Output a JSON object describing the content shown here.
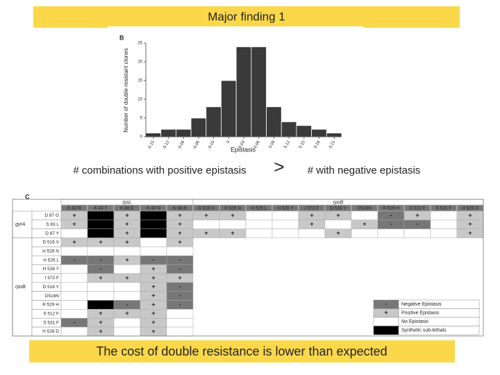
{
  "header": {
    "title": "Major finding 1"
  },
  "chart_data": {
    "type": "histogram",
    "panel": "B",
    "color": "#3a3a3a",
    "xlabel": "Epistasis",
    "ylabel": "Number of double resistant clones",
    "bins": [
      -0.165,
      -0.135,
      -0.105,
      -0.075,
      -0.045,
      -0.015,
      0.015,
      0.045,
      0.075,
      0.105,
      0.135,
      0.165,
      0.195,
      0.225
    ],
    "values": [
      1,
      2,
      2,
      5,
      8,
      15,
      24,
      24,
      8,
      4,
      3,
      2,
      1
    ],
    "xlim": [
      -0.165,
      0.225
    ],
    "xticks": [
      -0.15,
      -0.12,
      -0.09,
      -0.06,
      -0.03,
      0,
      0.03,
      0.06,
      0.09,
      0.12,
      0.15,
      0.18,
      0.21
    ],
    "ylim": [
      0,
      25
    ],
    "yticks": [
      0,
      5,
      10,
      15,
      20,
      25
    ]
  },
  "statement": {
    "left": "# combinations with positive epistasis",
    "symbol": ">",
    "right": "# with negative epistasis"
  },
  "table": {
    "panel": "C",
    "column_groups": [
      {
        "label": "rpsL",
        "columns": [
          "K 43 R",
          "K 43 T",
          "K 88 E",
          "K 43 N",
          "K 88 R"
        ]
      },
      {
        "label": "rpoB",
        "columns": [
          "D 516 V",
          "H 526 N",
          "H 526 L",
          "H 526 Y",
          "I 572 F",
          "D 516 Y",
          "D516N",
          "R 529 H",
          "S 512 F",
          "S 531 F",
          "H 526 D"
        ]
      }
    ],
    "row_groups": [
      {
        "label": "gyrA",
        "rows": [
          {
            "label": "D 87 G",
            "cells": [
              {
                "text": "+",
                "fill": "#c8c8c8"
              },
              {
                "fill": "#000"
              },
              {
                "text": "+",
                "fill": "#c8c8c8"
              },
              {
                "fill": "#000"
              },
              {
                "text": "+",
                "fill": "#c8c8c8"
              },
              {
                "text": "+",
                "fill": "#c8c8c8"
              },
              {
                "text": "+",
                "fill": "#c8c8c8"
              },
              null,
              null,
              {
                "text": "+",
                "fill": "#c8c8c8"
              },
              {
                "text": "+",
                "fill": "#c8c8c8"
              },
              null,
              {
                "text": "-",
                "fill": "#777"
              },
              {
                "text": "+",
                "fill": "#c8c8c8"
              },
              null,
              {
                "text": "+",
                "fill": "#c8c8c8"
              }
            ]
          },
          {
            "label": "S 83 L",
            "cells": [
              {
                "text": "+",
                "fill": "#c8c8c8"
              },
              {
                "fill": "#000"
              },
              {
                "text": "+",
                "fill": "#c8c8c8"
              },
              {
                "fill": "#000"
              },
              {
                "text": "+",
                "fill": "#c8c8c8"
              },
              null,
              null,
              null,
              null,
              {
                "text": "+",
                "fill": "#c8c8c8"
              },
              null,
              {
                "text": "+",
                "fill": "#c8c8c8"
              },
              {
                "text": "-",
                "fill": "#777"
              },
              {
                "text": "-",
                "fill": "#777"
              },
              null,
              {
                "text": "+",
                "fill": "#c8c8c8"
              }
            ]
          },
          {
            "label": "D 87 Y",
            "cells": [
              null,
              {
                "fill": "#000"
              },
              {
                "text": "+",
                "fill": "#c8c8c8"
              },
              {
                "fill": "#000"
              },
              {
                "text": "+",
                "fill": "#c8c8c8"
              },
              {
                "text": "+",
                "fill": "#c8c8c8"
              },
              {
                "text": "+",
                "fill": "#c8c8c8"
              },
              null,
              null,
              null,
              {
                "text": "+",
                "fill": "#c8c8c8"
              },
              null,
              null,
              null,
              null,
              {
                "text": "+",
                "fill": "#c8c8c8"
              }
            ]
          }
        ]
      },
      {
        "label": "rpoB",
        "rows": [
          {
            "label": "D 516 V",
            "cells": [
              {
                "text": "+",
                "fill": "#c8c8c8"
              },
              {
                "text": "+",
                "fill": "#c8c8c8"
              },
              {
                "text": "+",
                "fill": "#c8c8c8"
              },
              null,
              {
                "text": "+",
                "fill": "#c8c8c8"
              },
              null,
              null,
              null,
              null,
              null,
              null,
              null,
              null,
              null,
              null,
              null
            ]
          },
          {
            "label": "H 526 N",
            "cells": [
              null,
              null,
              null,
              null,
              null,
              null,
              null,
              null,
              null,
              null,
              null,
              null,
              null,
              null,
              null,
              null
            ]
          },
          {
            "label": "H 526 L",
            "cells": [
              {
                "text": "-",
                "fill": "#777"
              },
              {
                "text": "-",
                "fill": "#777"
              },
              {
                "text": "+",
                "fill": "#c8c8c8"
              },
              {
                "text": "-",
                "fill": "#777"
              },
              {
                "text": "-",
                "fill": "#777"
              },
              null,
              null,
              null,
              null,
              null,
              null,
              null,
              null,
              null,
              null,
              null
            ]
          },
          {
            "label": "H 526 Y",
            "cells": [
              null,
              {
                "text": "-",
                "fill": "#777"
              },
              null,
              {
                "text": "+",
                "fill": "#c8c8c8"
              },
              {
                "text": "-",
                "fill": "#777"
              },
              null,
              null,
              null,
              null,
              null,
              null,
              null,
              null,
              null,
              null,
              null
            ]
          },
          {
            "label": "I 572 F",
            "cells": [
              null,
              {
                "text": "+",
                "fill": "#c8c8c8"
              },
              {
                "text": "+",
                "fill": "#c8c8c8"
              },
              {
                "text": "+",
                "fill": "#c8c8c8"
              },
              {
                "text": "+",
                "fill": "#c8c8c8"
              },
              null,
              null,
              null,
              null,
              null,
              null,
              null,
              null,
              null,
              null,
              null
            ]
          },
          {
            "label": "D 516 Y",
            "cells": [
              null,
              null,
              null,
              {
                "text": "+",
                "fill": "#c8c8c8"
              },
              {
                "text": "-",
                "fill": "#777"
              },
              null,
              null,
              null,
              null,
              null,
              null,
              null,
              null,
              null,
              null,
              null
            ]
          },
          {
            "label": "D516N",
            "cells": [
              null,
              null,
              null,
              {
                "text": "+",
                "fill": "#c8c8c8"
              },
              {
                "text": "-",
                "fill": "#777"
              },
              null,
              null,
              null,
              null,
              null,
              null,
              null,
              null,
              null,
              null,
              null
            ]
          },
          {
            "label": "R 529 H",
            "cells": [
              null,
              {
                "fill": "#000"
              },
              {
                "text": "-",
                "fill": "#777"
              },
              {
                "text": "+",
                "fill": "#c8c8c8"
              },
              {
                "text": "-",
                "fill": "#777"
              },
              null,
              null,
              null,
              null,
              null,
              null,
              null,
              null,
              null,
              null,
              null
            ]
          },
          {
            "label": "S 512 F",
            "cells": [
              null,
              {
                "text": "+",
                "fill": "#c8c8c8"
              },
              {
                "text": "+",
                "fill": "#c8c8c8"
              },
              {
                "text": "+",
                "fill": "#c8c8c8"
              },
              null,
              null,
              null,
              null,
              null,
              null,
              null,
              null,
              null,
              null,
              null,
              null
            ]
          },
          {
            "label": "S 531 F",
            "cells": [
              {
                "text": "-",
                "fill": "#777"
              },
              {
                "text": "+",
                "fill": "#c8c8c8"
              },
              null,
              {
                "text": "+",
                "fill": "#c8c8c8"
              },
              null,
              null,
              null,
              null,
              null,
              null,
              null,
              null,
              null,
              null,
              null,
              null
            ]
          },
          {
            "label": "H 526 D",
            "cells": [
              null,
              {
                "text": "+",
                "fill": "#c8c8c8"
              },
              null,
              {
                "text": "+",
                "fill": "#c8c8c8"
              },
              null,
              null,
              null,
              null,
              null,
              null,
              null,
              null,
              null,
              null,
              null,
              null
            ]
          }
        ]
      }
    ],
    "legend": [
      {
        "symbol": "-",
        "label": "Negative Epistasis",
        "fill": "#777"
      },
      {
        "symbol": "+",
        "label": "Positive Epistasis",
        "fill": "#c8c8c8"
      },
      {
        "label": "No Epistasis",
        "fill": "#fff"
      },
      {
        "label": "Synthetic sub-lethals",
        "fill": "#000"
      }
    ]
  },
  "footer": {
    "text": "The cost of double resistance is lower than expected"
  }
}
